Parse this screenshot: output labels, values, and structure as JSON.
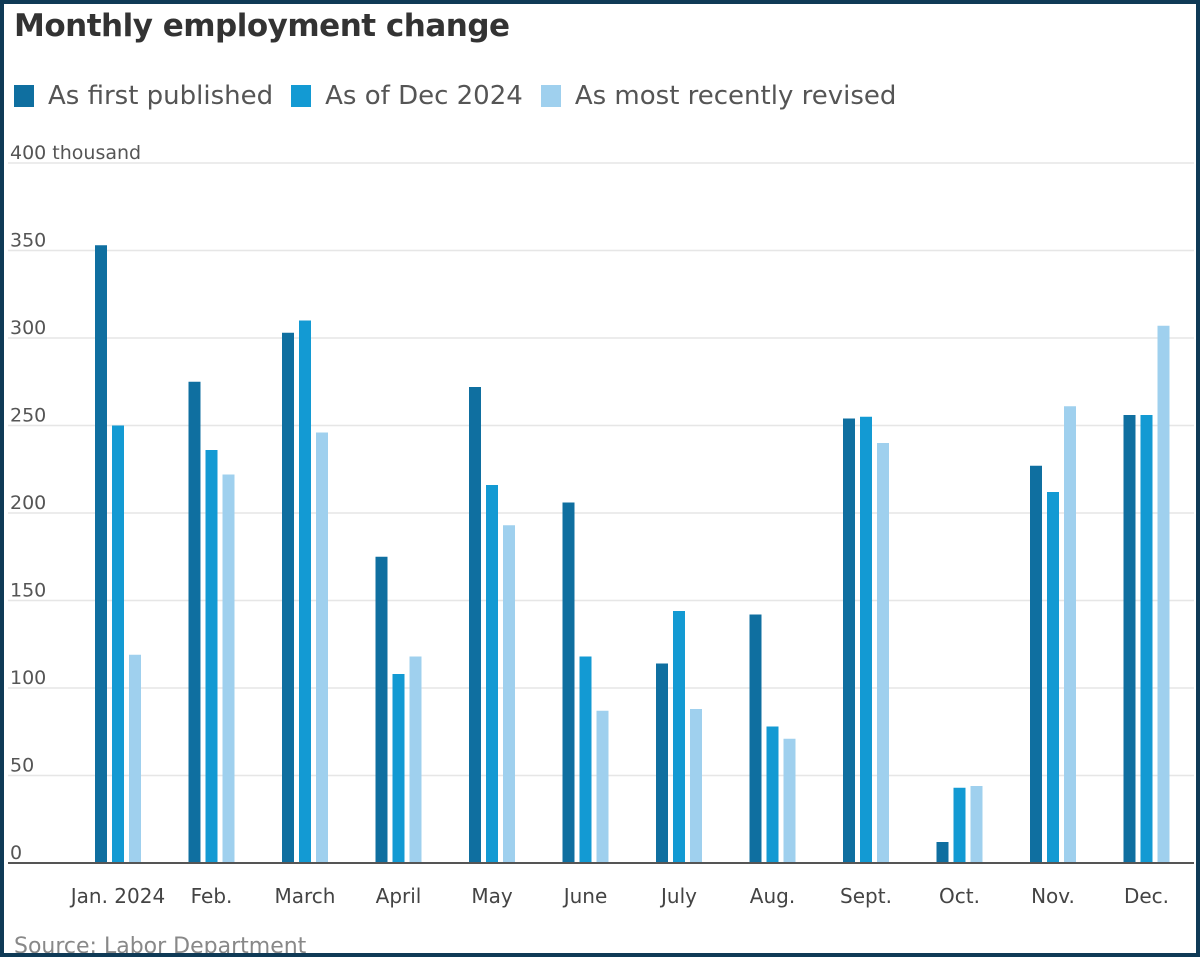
{
  "chart_data": {
    "type": "bar",
    "title": "Monthly employment change",
    "ylabel": "",
    "y_unit_label": "400 thousand",
    "ylim": [
      0,
      400
    ],
    "yticks": [
      "0",
      "50",
      "100",
      "150",
      "200",
      "250",
      "300",
      "350"
    ],
    "grid": true,
    "legend_position": "top-left",
    "categories": [
      "Jan. 2024",
      "Feb.",
      "March",
      "April",
      "May",
      "June",
      "July",
      "Aug.",
      "Sept.",
      "Oct.",
      "Nov.",
      "Dec."
    ],
    "series": [
      {
        "name": "As first published",
        "color": "#0f6fa0",
        "values": [
          353,
          275,
          303,
          175,
          272,
          206,
          114,
          142,
          254,
          12,
          227,
          256
        ]
      },
      {
        "name": "As of Dec 2024",
        "color": "#139ad3",
        "values": [
          250,
          236,
          310,
          108,
          216,
          118,
          144,
          78,
          255,
          43,
          212,
          256
        ]
      },
      {
        "name": "As most recently revised",
        "color": "#9fd0ee",
        "values": [
          119,
          222,
          246,
          118,
          193,
          87,
          88,
          71,
          240,
          44,
          261,
          307
        ]
      }
    ],
    "source": "Source: Labor Department"
  }
}
